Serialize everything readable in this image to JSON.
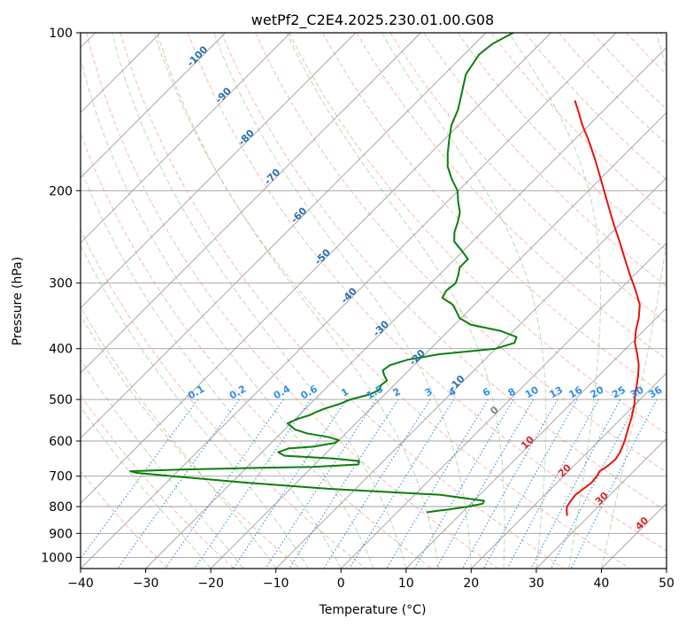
{
  "chart_data": {
    "type": "line",
    "title": "wetPf2_C2E4.2025.230.01.00.G08",
    "xlabel": "Temperature (°C)",
    "ylabel": "Pressure (hPa)",
    "xlim": [
      -40,
      50
    ],
    "ylim": [
      1050,
      100
    ],
    "y_scale": "log",
    "skew": true,
    "x_ticks": [
      "−40",
      "−30",
      "−20",
      "−10",
      "0",
      "10",
      "20",
      "30",
      "40",
      "50"
    ],
    "y_ticks": [
      {
        "p": 100,
        "label": "100"
      },
      {
        "p": 200,
        "label": "200"
      },
      {
        "p": 300,
        "label": "300"
      },
      {
        "p": 400,
        "label": "400"
      },
      {
        "p": 500,
        "label": "500"
      },
      {
        "p": 600,
        "label": "600"
      },
      {
        "p": 700,
        "label": "700"
      },
      {
        "p": 800,
        "label": "800"
      },
      {
        "p": 900,
        "label": "900"
      },
      {
        "p": 1000,
        "label": "1000"
      }
    ],
    "grid": true,
    "colors": {
      "temperature": "#e8120c",
      "dewpoint": "#0a7f0a",
      "isotherm": "#9e9e9e",
      "dry_adiabat": "#f4a48a",
      "moist_adiabat": "#9fd09a",
      "mixing_ratio": "#2f8fe6",
      "isotherm_label": "#2a6fb0",
      "dry_adiabat_label": "#d62728",
      "zero_label": "#808080"
    },
    "series": [
      {
        "role": "temperature",
        "points": [
          [
            830,
            26.5
          ],
          [
            815,
            25.8
          ],
          [
            800,
            25.2
          ],
          [
            780,
            24.9
          ],
          [
            760,
            24.7
          ],
          [
            740,
            25.0
          ],
          [
            720,
            25.3
          ],
          [
            700,
            25.1
          ],
          [
            685,
            24.8
          ],
          [
            670,
            25.2
          ],
          [
            650,
            25.4
          ],
          [
            630,
            25.0
          ],
          [
            600,
            24.0
          ],
          [
            570,
            22.7
          ],
          [
            540,
            21.4
          ],
          [
            510,
            19.8
          ],
          [
            490,
            18.5
          ],
          [
            470,
            17.3
          ],
          [
            450,
            16.0
          ],
          [
            430,
            14.5
          ],
          [
            410,
            12.6
          ],
          [
            390,
            10.5
          ],
          [
            370,
            8.8
          ],
          [
            350,
            7.3
          ],
          [
            330,
            5.4
          ],
          [
            310,
            2.6
          ],
          [
            290,
            -0.6
          ],
          [
            270,
            -3.9
          ],
          [
            250,
            -7.4
          ],
          [
            230,
            -11.3
          ],
          [
            210,
            -15.4
          ],
          [
            190,
            -19.9
          ],
          [
            175,
            -23.6
          ],
          [
            160,
            -27.8
          ],
          [
            150,
            -31.0
          ],
          [
            140,
            -34.1
          ],
          [
            135,
            -35.8
          ]
        ]
      },
      {
        "role": "dewpoint",
        "points": [
          [
            820,
            4.6
          ],
          [
            815,
            6.0
          ],
          [
            810,
            7.5
          ],
          [
            800,
            10.0
          ],
          [
            790,
            11.8
          ],
          [
            780,
            11.6
          ],
          [
            760,
            4.0
          ],
          [
            740,
            -14.0
          ],
          [
            720,
            -28.0
          ],
          [
            700,
            -40.0
          ],
          [
            690,
            -46.0
          ],
          [
            685,
            -47.3
          ],
          [
            680,
            -40.0
          ],
          [
            675,
            -28.0
          ],
          [
            672,
            -20.0
          ],
          [
            665,
            -13.3
          ],
          [
            655,
            -13.7
          ],
          [
            648,
            -18.0
          ],
          [
            640,
            -26.0
          ],
          [
            630,
            -27.5
          ],
          [
            620,
            -26.5
          ],
          [
            615,
            -23.0
          ],
          [
            605,
            -20.2
          ],
          [
            598,
            -20.0
          ],
          [
            590,
            -22.0
          ],
          [
            580,
            -26.0
          ],
          [
            570,
            -28.5
          ],
          [
            555,
            -30.5
          ],
          [
            545,
            -29.7
          ],
          [
            535,
            -28.3
          ],
          [
            528,
            -27.8
          ],
          [
            520,
            -27.0
          ],
          [
            510,
            -25.5
          ],
          [
            500,
            -24.5
          ],
          [
            490,
            -22.5
          ],
          [
            480,
            -21.5
          ],
          [
            470,
            -22.0
          ],
          [
            460,
            -21.8
          ],
          [
            450,
            -23.0
          ],
          [
            440,
            -24.0
          ],
          [
            430,
            -23.7
          ],
          [
            420,
            -21.8
          ],
          [
            410,
            -17.8
          ],
          [
            400,
            -10.0
          ],
          [
            390,
            -8.0
          ],
          [
            380,
            -8.6
          ],
          [
            370,
            -12.0
          ],
          [
            360,
            -17.5
          ],
          [
            350,
            -20.2
          ],
          [
            340,
            -21.7
          ],
          [
            330,
            -23.3
          ],
          [
            320,
            -26.0
          ],
          [
            310,
            -26.5
          ],
          [
            300,
            -26.2
          ],
          [
            290,
            -27.0
          ],
          [
            280,
            -28.0
          ],
          [
            270,
            -28.0
          ],
          [
            260,
            -30.3
          ],
          [
            250,
            -32.8
          ],
          [
            240,
            -34.2
          ],
          [
            230,
            -35.2
          ],
          [
            220,
            -36.4
          ],
          [
            210,
            -38.3
          ],
          [
            200,
            -40.1
          ],
          [
            190,
            -42.8
          ],
          [
            180,
            -45.3
          ],
          [
            170,
            -47.3
          ],
          [
            160,
            -49.2
          ],
          [
            150,
            -51.1
          ],
          [
            140,
            -52.5
          ],
          [
            130,
            -54.5
          ],
          [
            120,
            -56.7
          ],
          [
            110,
            -57.7
          ],
          [
            105,
            -57.3
          ],
          [
            100,
            -55.8
          ]
        ]
      }
    ],
    "isotherm_labels": [
      {
        "t": -100,
        "p": 112,
        "label": "-100"
      },
      {
        "t": -90,
        "p": 133,
        "label": "-90"
      },
      {
        "t": -80,
        "p": 160,
        "label": "-80"
      },
      {
        "t": -70,
        "p": 190,
        "label": "-70"
      },
      {
        "t": -60,
        "p": 225,
        "label": "-60"
      },
      {
        "t": -50,
        "p": 270,
        "label": "-50"
      },
      {
        "t": -40,
        "p": 320,
        "label": "-40"
      },
      {
        "t": -30,
        "p": 370,
        "label": "-30"
      },
      {
        "t": -20,
        "p": 420,
        "label": "-20"
      },
      {
        "t": -10,
        "p": 470,
        "label": "-10"
      },
      {
        "t": 0,
        "p": 530,
        "label": "0"
      },
      {
        "t": 10,
        "p": 610,
        "label": "10"
      },
      {
        "t": 20,
        "p": 690,
        "label": "20"
      },
      {
        "t": 30,
        "p": 780,
        "label": "30"
      },
      {
        "t": 40,
        "p": 870,
        "label": "40"
      }
    ],
    "mixing_ratio_labels": [
      "0.1",
      "0.2",
      "0.4",
      "0.6",
      "1",
      "1.5",
      "2",
      "3",
      "4",
      "6",
      "8",
      "10",
      "13",
      "16",
      "20",
      "25",
      "30",
      "36"
    ],
    "mixing_ratio_values": [
      0.1,
      0.2,
      0.4,
      0.6,
      1,
      1.5,
      2,
      3,
      4,
      6,
      8,
      10,
      13,
      16,
      20,
      25,
      30,
      36
    ]
  }
}
